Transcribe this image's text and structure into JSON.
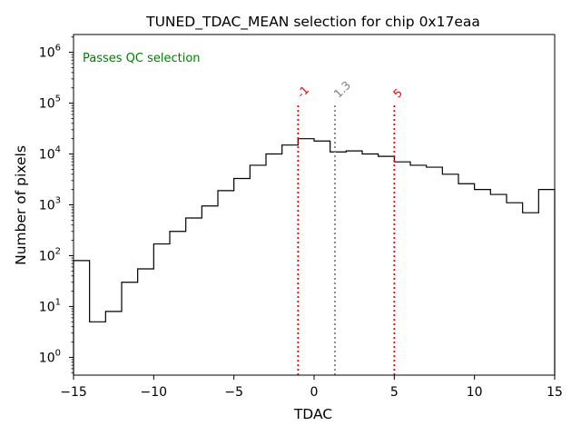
{
  "chart_data": {
    "type": "histogram",
    "title": "TUNED_TDAC_MEAN selection for chip 0x17eaa",
    "xlabel": "TDAC",
    "ylabel": "Number of pixels",
    "xlim": [
      -15,
      15
    ],
    "ylim_log10": [
      -0.35,
      6.35
    ],
    "yscale": "log",
    "xticks": [
      -15,
      -10,
      -5,
      0,
      5,
      10,
      15
    ],
    "xtick_labels": [
      "−15",
      "−10",
      "−5",
      "0",
      "5",
      "10",
      "15"
    ],
    "yticks_exp": [
      0,
      1,
      2,
      3,
      4,
      5,
      6
    ],
    "ytick_base": "10",
    "yticks_exp_labels": [
      "0",
      "1",
      "2",
      "3",
      "4",
      "5",
      "6"
    ],
    "bin_edges": [
      -15,
      -14,
      -13,
      -12,
      -11,
      -10,
      -9,
      -8,
      -7,
      -6,
      -5,
      -4,
      -3,
      -2,
      -1,
      0,
      1,
      2,
      3,
      4,
      5,
      6,
      7,
      8,
      9,
      10,
      11,
      12,
      13,
      14,
      15
    ],
    "counts": [
      80,
      5,
      8,
      30,
      55,
      170,
      300,
      550,
      950,
      1900,
      3300,
      6000,
      10000,
      15000,
      20000,
      18000,
      11000,
      11500,
      10000,
      9000,
      7000,
      6000,
      5500,
      4000,
      2600,
      2000,
      1600,
      1100,
      700,
      2000
    ],
    "annotation": "Passes QC selection",
    "annotation_color": "#008000",
    "vlines": [
      {
        "x": -1,
        "label": "-1",
        "color": "#ff0000",
        "style": "dotted"
      },
      {
        "x": 1.3,
        "label": "1.3",
        "color": "#808080",
        "style": "dotted"
      },
      {
        "x": 5,
        "label": "5",
        "color": "#ff0000",
        "style": "dotted"
      }
    ],
    "vline_top": 100000,
    "grid": false,
    "line_color": "#000000"
  }
}
